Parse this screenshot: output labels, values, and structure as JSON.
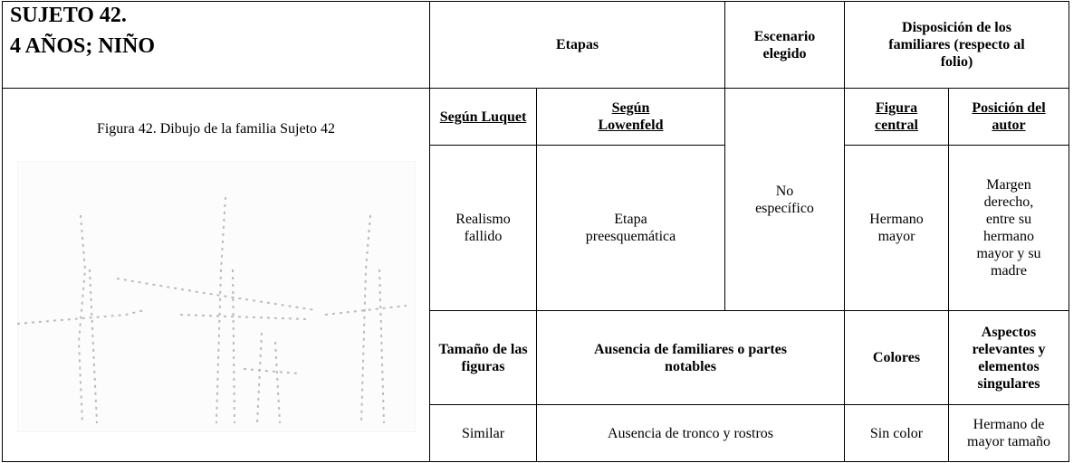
{
  "header": {
    "subject": "SUJETO 42.",
    "age": "4 AÑOS; NIÑO",
    "columns": [
      "Etapas",
      "Escenario elegido",
      "Disposición de los familiares (respecto al folio)"
    ]
  },
  "figure": {
    "caption": "Figura 42. Dibujo de la familia Sujeto 42"
  },
  "table": {
    "rows": [
      [
        "Según Luquet",
        "Según Lowenfeld",
        "No específico",
        "Figura central",
        "Posición del autor"
      ],
      [
        "Realismo fallido",
        "Etapa preesquemática",
        "Hermano mayor",
        "Margen derecho, entre su hermano mayor y su madre"
      ],
      [
        "Tamaño de las figuras",
        "Ausencia de familiares o partes notables",
        "Colores",
        "Aspectos relevantes y elementos singulares"
      ],
      [
        "Similar",
        "Ausencia de tronco y rostros",
        "Sin color",
        "Hermano de mayor tamaño"
      ]
    ]
  }
}
